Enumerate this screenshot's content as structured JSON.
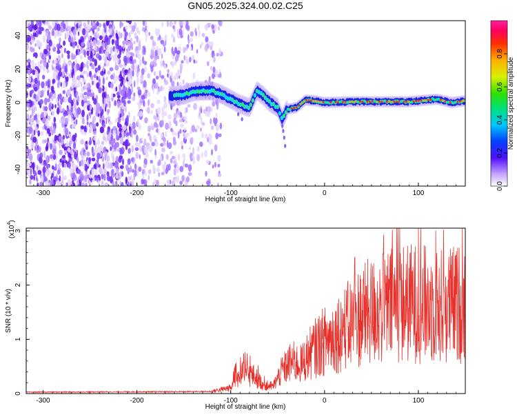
{
  "chart_data": [
    {
      "type": "heatmap",
      "title": "GN05.2025.324.00.02.C25",
      "xlabel": "Height of straight line (km)",
      "ylabel": "Frequency (Hz)",
      "xlim": [
        -318,
        150
      ],
      "ylim": [
        -50,
        49
      ],
      "xticks": [
        -300,
        -200,
        -100,
        0,
        100
      ],
      "xtick_labels": [
        "-300",
        "-200",
        "-100",
        "0",
        "100"
      ],
      "yticks": [
        -40,
        -20,
        0,
        20,
        40
      ],
      "ytick_labels": [
        "-40",
        "-20",
        "0",
        "20",
        "40"
      ],
      "colorbar": {
        "label": "Normalized spectral amplitude",
        "range": [
          0,
          1
        ],
        "ticks": [
          0.0,
          0.2,
          0.4,
          0.6,
          0.8
        ],
        "tick_labels": [
          "0.0",
          "0.2",
          "0.4",
          "0.6",
          "0.8"
        ]
      },
      "noise_region_x": [
        -318,
        -110
      ],
      "signal_track": [
        {
          "x": -165,
          "f": 4.0
        },
        {
          "x": -150,
          "f": 4.5
        },
        {
          "x": -140,
          "f": 6.5
        },
        {
          "x": -130,
          "f": 7.0
        },
        {
          "x": -120,
          "f": 7.0
        },
        {
          "x": -110,
          "f": 5.0
        },
        {
          "x": -100,
          "f": 2.0
        },
        {
          "x": -90,
          "f": -1.0
        },
        {
          "x": -80,
          "f": -3.0
        },
        {
          "x": -72,
          "f": 7.0
        },
        {
          "x": -65,
          "f": 4.0
        },
        {
          "x": -58,
          "f": 0.0
        },
        {
          "x": -50,
          "f": -3.0
        },
        {
          "x": -45,
          "f": -10.0
        },
        {
          "x": -40,
          "f": -4.0
        },
        {
          "x": -30,
          "f": -3.0
        },
        {
          "x": -20,
          "f": 1.5
        },
        {
          "x": -10,
          "f": 1.0
        },
        {
          "x": 0,
          "f": 0.0
        },
        {
          "x": 30,
          "f": 0.5
        },
        {
          "x": 60,
          "f": 0.5
        },
        {
          "x": 90,
          "f": 0.5
        },
        {
          "x": 110,
          "f": 1.5
        },
        {
          "x": 120,
          "f": 2.0
        },
        {
          "x": 135,
          "f": 0.0
        },
        {
          "x": 150,
          "f": 1.0
        }
      ]
    },
    {
      "type": "line",
      "title": "",
      "xlabel": "Height of straight line (km)",
      "ylabel": "SNR (10 * v/v)",
      "scale_label": "(x10",
      "scale_exp": "4",
      "scale_close": ")",
      "xlim": [
        -318,
        150
      ],
      "ylim": [
        0,
        3.05
      ],
      "xticks": [
        -300,
        -200,
        -100,
        0,
        100
      ],
      "xtick_labels": [
        "-300",
        "-200",
        "-100",
        "0",
        "100"
      ],
      "yticks": [
        0,
        1,
        2,
        3
      ],
      "ytick_labels": [
        "0",
        "1",
        "2",
        "3"
      ],
      "series": [
        {
          "name": "SNR",
          "color": "#e8302b",
          "envelope_x": [
            -318,
            -120,
            -100,
            -95,
            -85,
            -75,
            -65,
            -55,
            -45,
            -35,
            -25,
            -15,
            -5,
            5,
            20,
            40,
            60,
            80,
            100,
            120,
            150
          ],
          "envelope_y": [
            0.03,
            0.04,
            0.1,
            0.25,
            0.35,
            0.3,
            0.15,
            0.12,
            0.4,
            0.55,
            0.5,
            0.7,
            0.85,
            0.95,
            1.1,
            1.35,
            1.45,
            1.55,
            1.55,
            1.5,
            1.55
          ]
        }
      ]
    }
  ],
  "colors": {
    "signal_line": "#e8302b",
    "noise_purple": "#6a00e0"
  }
}
